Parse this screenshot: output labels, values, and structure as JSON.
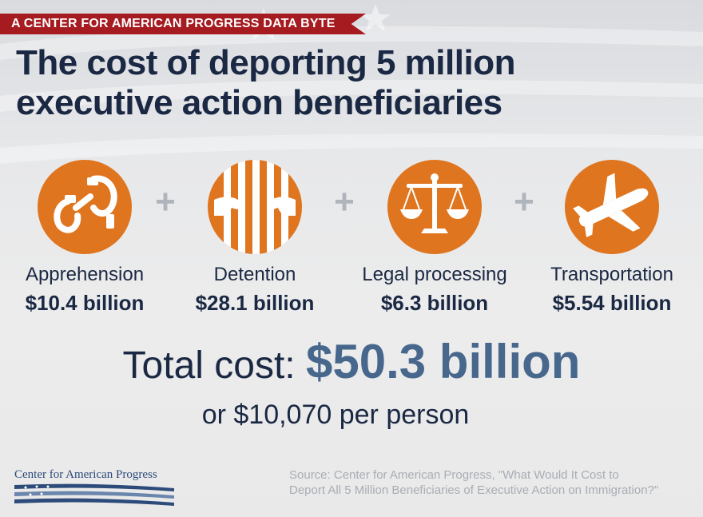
{
  "banner": "A CENTER FOR AMERICAN PROGRESS DATA BYTE",
  "title_line1": "The cost of deporting 5 million",
  "title_line2": "executive action beneficiaries",
  "items": [
    {
      "label": "Apprehension",
      "value": "$10.4 billion",
      "icon": "handcuffs-icon"
    },
    {
      "label": "Detention",
      "value": "$28.1 billion",
      "icon": "prison-bars-icon"
    },
    {
      "label": "Legal processing",
      "value": "$6.3 billion",
      "icon": "scales-of-justice-icon"
    },
    {
      "label": "Transportation",
      "value": "$5.54 billion",
      "icon": "airplane-icon"
    }
  ],
  "plus_sign": "+",
  "total_label": "Total cost:",
  "total_amount": "$50.3 billion",
  "per_person": "or $10,070 per person",
  "logo_text": "Center for American Progress",
  "source_line1": "Source: Center for American Progress, \"What Would It Cost to",
  "source_line2": "Deport All 5 Million Beneficiaries of Executive Action on Immigration?\"",
  "colors": {
    "banner": "#a51b20",
    "navy": "#1a2843",
    "orange": "#e0751f",
    "total_blue": "#47678c",
    "source_gray": "#a8adb5"
  }
}
